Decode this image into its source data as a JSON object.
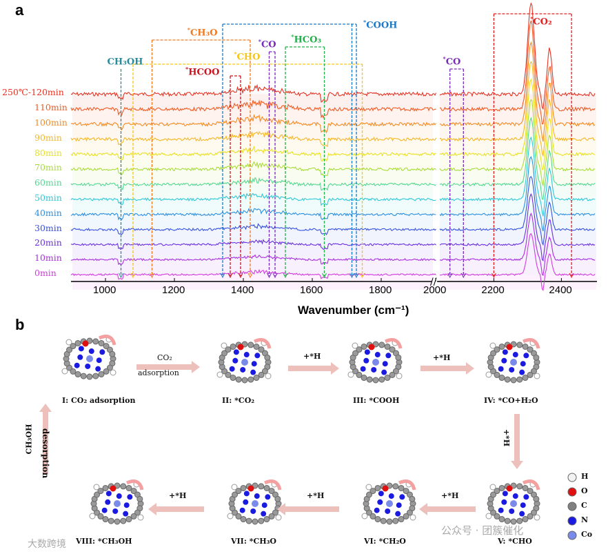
{
  "panels": {
    "a": "a",
    "b": "b"
  },
  "chart_data": {
    "type": "line",
    "xlabel": "Wavenumber (cm⁻¹)",
    "xlim_left": [
      900,
      1960
    ],
    "xlim_right": [
      2040,
      2500
    ],
    "xticks": [
      "1000",
      "1200",
      "1400",
      "1600",
      "1800",
      "2000",
      "2200",
      "2400"
    ],
    "series": [
      {
        "name": "250℃-120min",
        "color": "#e53222"
      },
      {
        "name": "110min",
        "color": "#f05a22"
      },
      {
        "name": "100min",
        "color": "#f4891f"
      },
      {
        "name": "90min",
        "color": "#f5b622"
      },
      {
        "name": "80min",
        "color": "#e8e020"
      },
      {
        "name": "70min",
        "color": "#a8dc3a"
      },
      {
        "name": "60min",
        "color": "#52d890"
      },
      {
        "name": "50min",
        "color": "#2ec8d8"
      },
      {
        "name": "40min",
        "color": "#2a8ee0"
      },
      {
        "name": "30min",
        "color": "#3550e0"
      },
      {
        "name": "20min",
        "color": "#6a2ee0"
      },
      {
        "name": "10min",
        "color": "#a92ee0"
      },
      {
        "name": "0min",
        "color": "#d23ae0"
      }
    ],
    "annotations": [
      {
        "label": "CH₃OH",
        "star": "",
        "color": "#2a8a9a",
        "wn": [
          1045
        ]
      },
      {
        "label": "CHO",
        "star": "*",
        "color": "#f5c518",
        "wn": [
          1080,
          1745
        ]
      },
      {
        "label": "CH₃O",
        "star": "*",
        "color": "#f07a22",
        "wn": [
          1135,
          1420
        ]
      },
      {
        "label": "HCOO",
        "star": "*",
        "color": "#c8141e",
        "wn": [
          1362,
          1392
        ]
      },
      {
        "label": "COOH",
        "star": "*",
        "color": "#1a78c8",
        "wn": [
          1340,
          1715,
          1728
        ]
      },
      {
        "label": "CO",
        "star": "*",
        "color": "#7a2ab8",
        "wn": [
          1475,
          1492
        ]
      },
      {
        "label": "HCO₃",
        "star": "*",
        "color": "#22b04a",
        "wn": [
          1522,
          1635
        ]
      },
      {
        "label": "CO",
        "star": "*",
        "color": "#7a2ab8",
        "wn": [
          2070,
          2110
        ]
      },
      {
        "label": "CO₂",
        "star": "*",
        "color": "#e02020",
        "wn": [
          2200,
          2430
        ]
      }
    ]
  },
  "mechanism": {
    "steps": [
      "I: CO₂ adsorption",
      "II: *CO₂",
      "III: *COOH",
      "IV: *CO+H₂O",
      "V: *CHO",
      "VI: *CH₂O",
      "VII: *CH₃O",
      "VIII: *CH₃OH"
    ],
    "arrow_labels": {
      "adsorption1": "CO₂",
      "adsorption2": "adsorption",
      "h": "+*H",
      "desorb1": "CH₃OH",
      "desorb2": "desorption"
    },
    "legend": [
      {
        "el": "H",
        "color": "#f2f2f2"
      },
      {
        "el": "O",
        "color": "#e01010"
      },
      {
        "el": "C",
        "color": "#808080"
      },
      {
        "el": "N",
        "color": "#1a1ae0"
      },
      {
        "el": "Co",
        "color": "#7a8ae8"
      }
    ]
  },
  "watermarks": [
    "公众号 · 团簇催化",
    "大数跨境"
  ]
}
